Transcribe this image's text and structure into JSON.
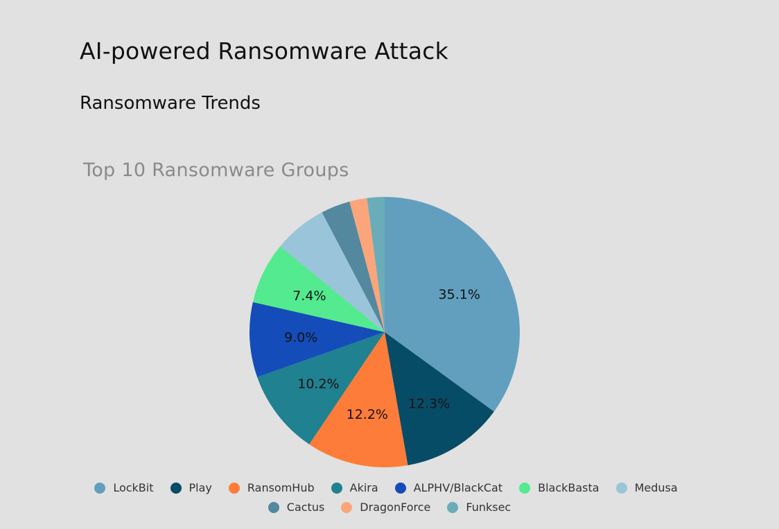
{
  "page": {
    "title": "AI-powered Ransomware Attack",
    "section": "Ransomware Trends"
  },
  "chart_data": {
    "type": "pie",
    "title": "Top 10 Ransomware Groups",
    "slices": [
      {
        "name": "LockBit",
        "value": 35.1,
        "label": "35.1%",
        "color": "#629fbf"
      },
      {
        "name": "Play",
        "value": 12.3,
        "label": "12.3%",
        "color": "#074c67"
      },
      {
        "name": "RansomHub",
        "value": 12.2,
        "label": "12.2%",
        "color": "#fe7c39"
      },
      {
        "name": "Akira",
        "value": 10.2,
        "label": "10.2%",
        "color": "#208190"
      },
      {
        "name": "ALPHV/BlackCat",
        "value": 9.0,
        "label": "9.0%",
        "color": "#144dba"
      },
      {
        "name": "BlackBasta",
        "value": 7.4,
        "label": "7.4%",
        "color": "#54ea8f"
      },
      {
        "name": "Medusa",
        "value": 6.4,
        "label": "",
        "color": "#9ac4da"
      },
      {
        "name": "Cactus",
        "value": 3.5,
        "label": "",
        "color": "#53889f"
      },
      {
        "name": "DragonForce",
        "value": 2.1,
        "label": "",
        "color": "#fda57a"
      },
      {
        "name": "Funksec",
        "value": 2.1,
        "label": "",
        "color": "#6aadb9"
      }
    ],
    "legend_placement": "bottom"
  }
}
